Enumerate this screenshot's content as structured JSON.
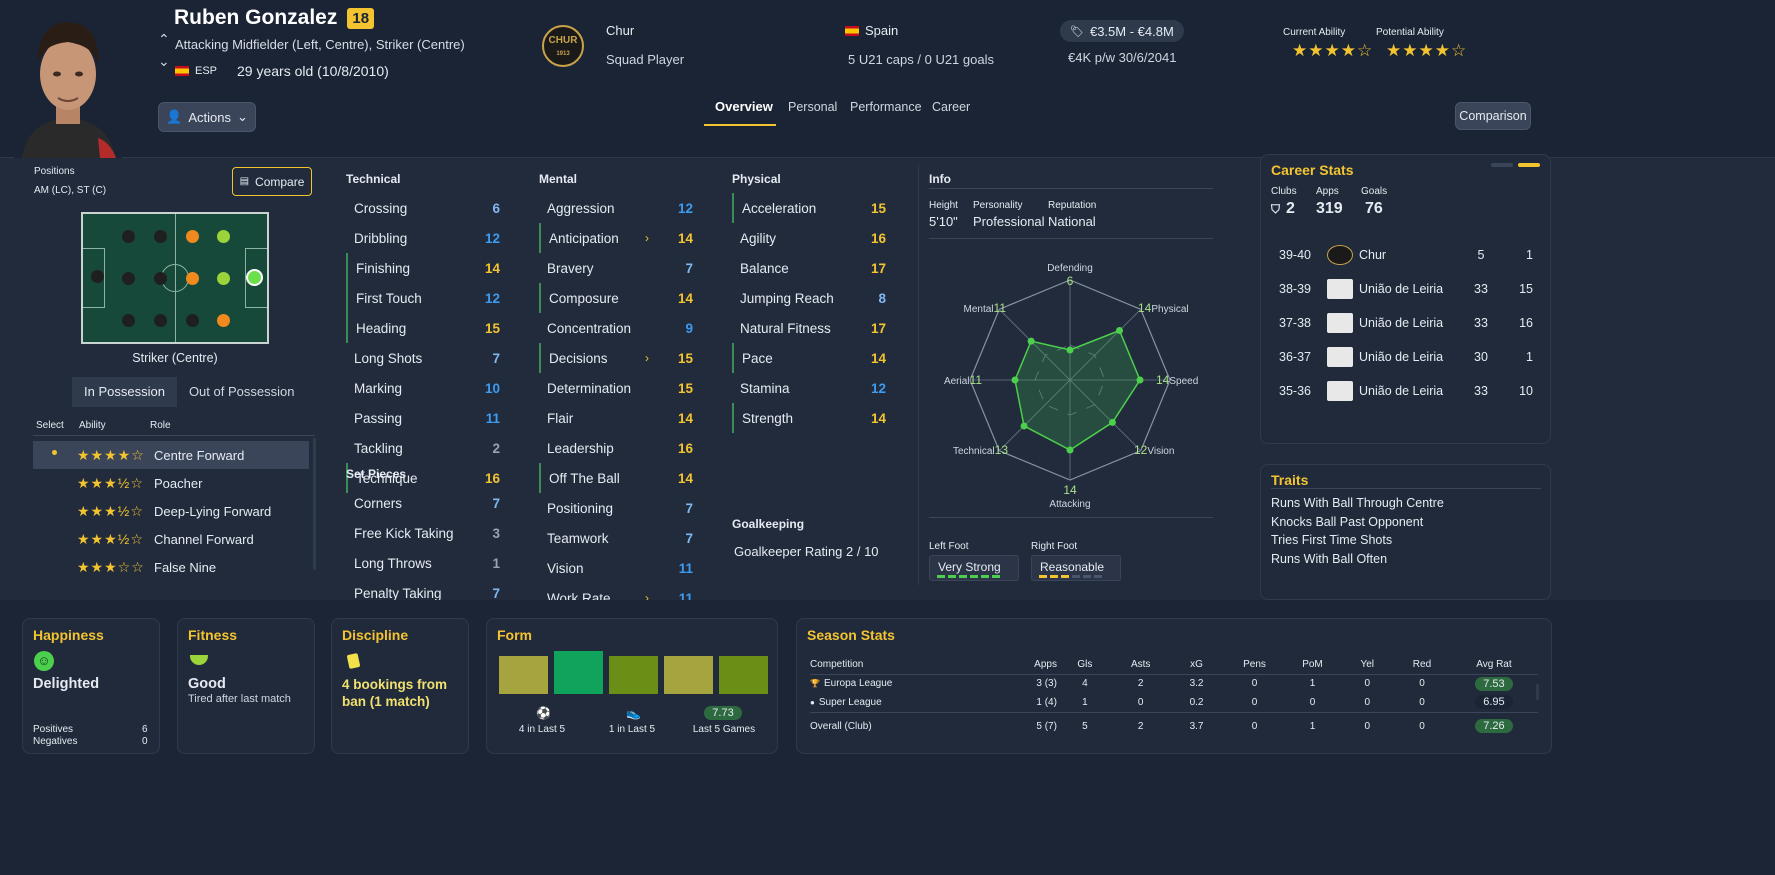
{
  "player": {
    "name": "Ruben Gonzalez",
    "number": "18",
    "positions_text": "Attacking Midfielder (Left, Centre), Striker (Centre)",
    "nation_code": "ESP",
    "age_text": "29 years old (10/8/2010)",
    "actions_label": "Actions"
  },
  "club": {
    "name": "Chur",
    "crest_text": "CHUR",
    "crest_year": "1913",
    "status": "Squad Player"
  },
  "nation": {
    "name": "Spain",
    "caps": "5 U21 caps / 0 U21 goals"
  },
  "contract": {
    "value": "€3.5M - €4.8M",
    "wage": "€4K p/w 30/6/2041"
  },
  "ability": {
    "current_label": "Current Ability",
    "current_stars": "★★★★☆",
    "potential_label": "Potential Ability",
    "potential_stars": "★★★★☆"
  },
  "tabs": [
    "Overview",
    "Personal",
    "Performance",
    "Career"
  ],
  "comparison_label": "Comparison",
  "positions": {
    "label": "Positions",
    "value": "AM (LC), ST (C)",
    "compare_label": "Compare",
    "pitch_caption": "Striker (Centre)",
    "poss_tabs": [
      "In Possession",
      "Out of Possession"
    ],
    "headers": [
      "Select",
      "Ability",
      "Role"
    ],
    "roles": [
      {
        "stars": "★★★★☆",
        "name": "Centre Forward"
      },
      {
        "stars": "★★★½☆",
        "name": "Poacher"
      },
      {
        "stars": "★★★½☆",
        "name": "Deep-Lying Forward"
      },
      {
        "stars": "★★★½☆",
        "name": "Channel Forward"
      },
      {
        "stars": "★★★☆☆",
        "name": "False Nine"
      }
    ]
  },
  "technical": {
    "title": "Technical",
    "items": [
      [
        "Crossing",
        "6"
      ],
      [
        "Dribbling",
        "12"
      ],
      [
        "Finishing",
        "14"
      ],
      [
        "First Touch",
        "12"
      ],
      [
        "Heading",
        "15"
      ],
      [
        "Long Shots",
        "7"
      ],
      [
        "Marking",
        "10"
      ],
      [
        "Passing",
        "11"
      ],
      [
        "Tackling",
        "2"
      ],
      [
        "Technique",
        "16"
      ]
    ]
  },
  "setpieces": {
    "title": "Set Pieces",
    "items": [
      [
        "Corners",
        "7"
      ],
      [
        "Free Kick Taking",
        "3"
      ],
      [
        "Long Throws",
        "1"
      ],
      [
        "Penalty Taking",
        "7"
      ]
    ]
  },
  "mental": {
    "title": "Mental",
    "items": [
      [
        "Aggression",
        "12"
      ],
      [
        "Anticipation",
        "14"
      ],
      [
        "Bravery",
        "7"
      ],
      [
        "Composure",
        "14"
      ],
      [
        "Concentration",
        "9"
      ],
      [
        "Decisions",
        "15"
      ],
      [
        "Determination",
        "15"
      ],
      [
        "Flair",
        "14"
      ],
      [
        "Leadership",
        "16"
      ],
      [
        "Off The Ball",
        "14"
      ],
      [
        "Positioning",
        "7"
      ],
      [
        "Teamwork",
        "7"
      ],
      [
        "Vision",
        "11"
      ],
      [
        "Work Rate",
        "11"
      ]
    ]
  },
  "physical": {
    "title": "Physical",
    "items": [
      [
        "Acceleration",
        "15"
      ],
      [
        "Agility",
        "16"
      ],
      [
        "Balance",
        "17"
      ],
      [
        "Jumping Reach",
        "8"
      ],
      [
        "Natural Fitness",
        "17"
      ],
      [
        "Pace",
        "14"
      ],
      [
        "Stamina",
        "12"
      ],
      [
        "Strength",
        "14"
      ]
    ]
  },
  "goalkeeping": {
    "title": "Goalkeeping",
    "rating": "Goalkeeper Rating 2 / 10"
  },
  "info": {
    "title": "Info",
    "height_label": "Height",
    "height": "5'10\"",
    "personality_label": "Personality",
    "personality": "Professional",
    "reputation_label": "Reputation",
    "reputation": "National",
    "radar": [
      {
        "label": "Defending",
        "value": "6"
      },
      {
        "label": "Physical",
        "value": "14"
      },
      {
        "label": "Speed",
        "value": "14"
      },
      {
        "label": "Vision",
        "value": "12"
      },
      {
        "label": "Attacking",
        "value": "14"
      },
      {
        "label": "Technical",
        "value": "13"
      },
      {
        "label": "Aerial",
        "value": "11"
      },
      {
        "label": "Mental",
        "value": "11"
      }
    ],
    "left_foot_label": "Left Foot",
    "left_foot": "Very Strong",
    "right_foot_label": "Right Foot",
    "right_foot": "Reasonable"
  },
  "career": {
    "title": "Career Stats",
    "clubs_label": "Clubs",
    "clubs": "2",
    "apps_label": "Apps",
    "apps": "319",
    "goals_label": "Goals",
    "goals": "76",
    "rows": [
      {
        "season": "39-40",
        "club": "Chur",
        "apps": "5",
        "goals": "1"
      },
      {
        "season": "38-39",
        "club": "União de Leiria",
        "apps": "33",
        "goals": "15"
      },
      {
        "season": "37-38",
        "club": "União de Leiria",
        "apps": "33",
        "goals": "16"
      },
      {
        "season": "36-37",
        "club": "União de Leiria",
        "apps": "30",
        "goals": "1"
      },
      {
        "season": "35-36",
        "club": "União de Leiria",
        "apps": "33",
        "goals": "10"
      }
    ]
  },
  "traits": {
    "title": "Traits",
    "items": [
      "Runs With Ball Through Centre",
      "Knocks Ball Past Opponent",
      "Tries First Time Shots",
      "Runs With Ball Often"
    ]
  },
  "happiness": {
    "title": "Happiness",
    "value": "Delighted",
    "pos_label": "Positives",
    "pos": "6",
    "neg_label": "Negatives",
    "neg": "0"
  },
  "fitness": {
    "title": "Fitness",
    "value": "Good",
    "sub": "Tired after last match"
  },
  "discipline": {
    "title": "Discipline",
    "value": "4 bookings from ban (1 match)"
  },
  "form": {
    "title": "Form",
    "goals": "4 in Last 5",
    "assists": "1 in Last 5",
    "rating": "7.73",
    "rating_label": "Last 5 Games"
  },
  "season": {
    "title": "Season Stats",
    "headers": [
      "Competition",
      "Apps",
      "Gls",
      "Asts",
      "xG",
      "Pens",
      "PoM",
      "Yel",
      "Red",
      "Avg Rat"
    ],
    "rows": [
      [
        "Europa League",
        "3 (3)",
        "4",
        "2",
        "3.2",
        "0",
        "1",
        "0",
        "0",
        "7.53"
      ],
      [
        "Super League",
        "1 (4)",
        "1",
        "0",
        "0.2",
        "0",
        "0",
        "0",
        "0",
        "6.95"
      ],
      [
        "Overall (Club)",
        "5 (7)",
        "5",
        "2",
        "3.7",
        "0",
        "1",
        "0",
        "0",
        "7.26"
      ]
    ]
  }
}
